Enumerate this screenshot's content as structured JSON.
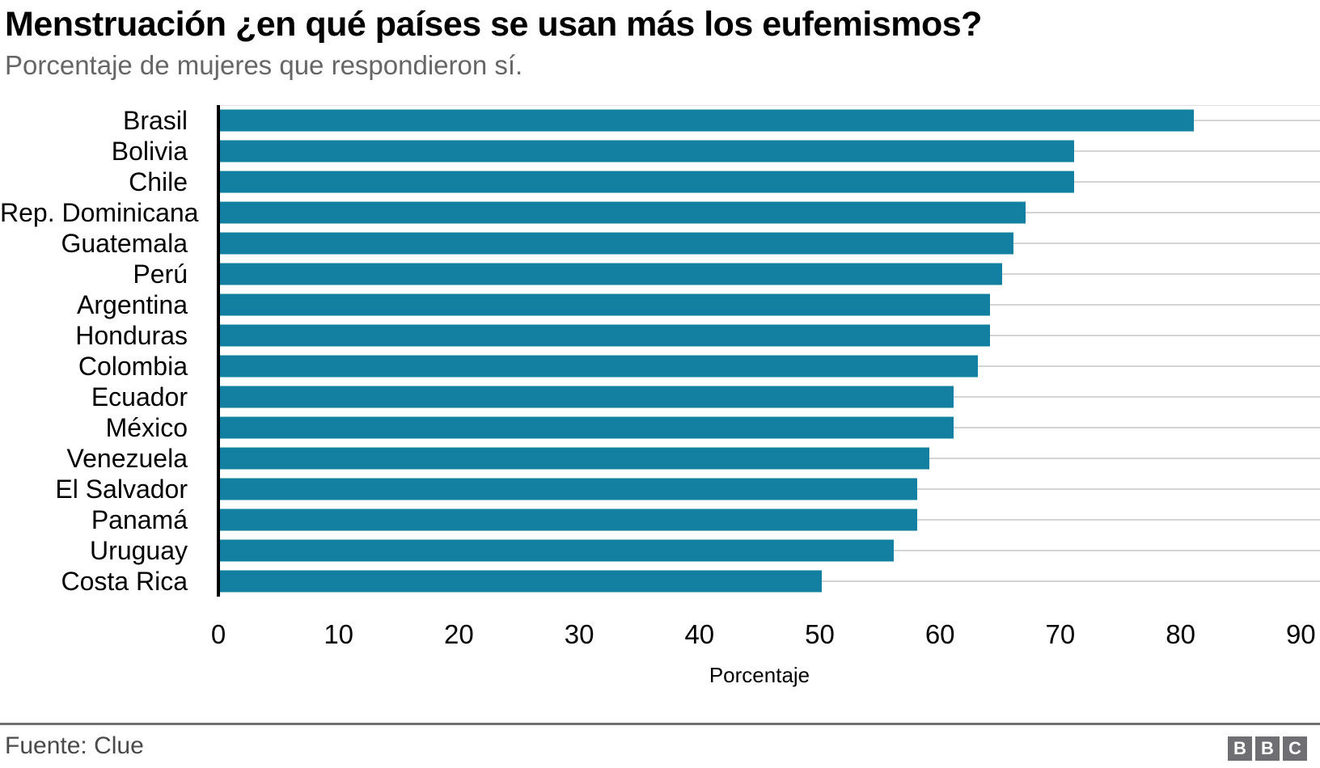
{
  "chart_data": {
    "type": "bar",
    "orientation": "horizontal",
    "title": "Menstruación ¿en qué países se usan más los eufemismos?",
    "subtitle": "Porcentaje de mujeres que respondieron sí.",
    "xlabel": "Porcentaje",
    "categories": [
      "Brasil",
      "Bolivia",
      "Chile",
      "Rep. Dominicana",
      "Guatemala",
      "Perú",
      "Argentina",
      "Honduras",
      "Colombia",
      "Ecuador",
      "México",
      "Venezuela",
      "El Salvador",
      "Panamá",
      "Uruguay",
      "Costa Rica"
    ],
    "values": [
      81,
      71,
      71,
      67,
      66,
      65,
      64,
      64,
      63,
      61,
      61,
      59,
      58,
      58,
      56,
      50
    ],
    "xticks": [
      0,
      10,
      20,
      30,
      40,
      50,
      60,
      70,
      80,
      90
    ],
    "xlim": [
      0,
      90
    ],
    "grid": "light horizontal line behind each bar, full plot width",
    "legend": "none",
    "bar_color": "#1380A1",
    "gridline_color": "#d4d4d4",
    "axis_line_color": "#000000"
  },
  "footer": {
    "source": "Fuente: Clue",
    "logo_letters": [
      "B",
      "B",
      "C"
    ],
    "logo_color": "#6e6e73"
  }
}
